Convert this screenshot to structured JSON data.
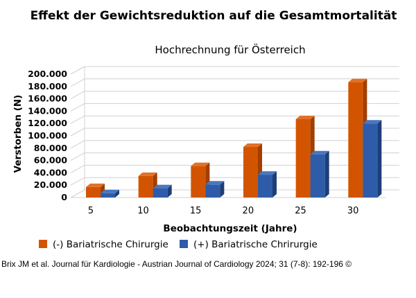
{
  "chart_data": {
    "type": "bar",
    "title": "Effekt der Gewichtsreduktion auf die Gesamtmortalität",
    "subtitle": "Hochrechnung für Österreich",
    "xlabel": "Beobachtungszeit (Jahre)",
    "ylabel": "Verstorben (N)",
    "categories": [
      "5",
      "10",
      "15",
      "20",
      "25",
      "30"
    ],
    "ylim": [
      0,
      200000
    ],
    "yticks": [
      0,
      20000,
      40000,
      60000,
      80000,
      100000,
      120000,
      140000,
      160000,
      180000,
      200000
    ],
    "ytick_labels": [
      "0",
      "20.000",
      "40.000",
      "60.000",
      "80.000",
      "100.000",
      "120.000",
      "140.000",
      "160.000",
      "180.000",
      "200.000"
    ],
    "grid": true,
    "legend_position": "bottom-left",
    "three_d": true,
    "series": [
      {
        "name": "(-) Bariatrische Chirurgie",
        "color": "#D35400",
        "top_color": "#E0712A",
        "side_color": "#A23E00",
        "values": [
          17000,
          35000,
          51000,
          82000,
          127000,
          187000
        ]
      },
      {
        "name": "(+) Bariatrische Chrirurgie",
        "color": "#2E5CA8",
        "top_color": "#4A76C0",
        "side_color": "#1E3E77",
        "values": [
          7000,
          15000,
          21000,
          37000,
          70000,
          120000
        ]
      }
    ]
  },
  "citation": "Brix JM et al. Journal für Kardiologie - Austrian Journal of Cardiology 2024; 31 (7-8): 192-196 ©"
}
